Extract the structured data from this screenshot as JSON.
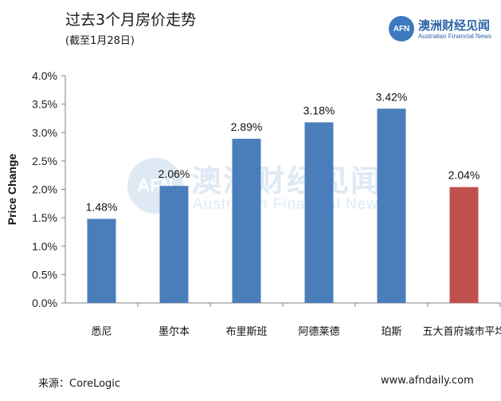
{
  "header": {
    "title": "过去3个月房价走势",
    "subtitle": "(截至1月28日)"
  },
  "logo": {
    "mark": "AFN",
    "name_cn": "澳洲财经见闻",
    "name_en": "Australian Financial News"
  },
  "watermark": {
    "mark": "AFN",
    "name_cn": "澳洲财经见闻",
    "name_en": "Australian Financial News"
  },
  "footer": {
    "source": "来源：CoreLogic",
    "website": "www.afndaily.com"
  },
  "colors": {
    "bar_default": "#4a7ebb",
    "bar_highlight": "#c0504d",
    "axis": "#808080"
  },
  "chart_data": {
    "type": "bar",
    "title": "",
    "xlabel": "",
    "ylabel": "Price Change",
    "ylim": [
      0,
      4.0
    ],
    "y_ticks": [
      "0.0%",
      "0.5%",
      "1.0%",
      "1.5%",
      "2.0%",
      "2.5%",
      "3.0%",
      "3.5%",
      "4.0%"
    ],
    "categories": [
      "悉尼",
      "墨尔本",
      "布里斯班",
      "阿德莱德",
      "珀斯",
      "五大首府城市平均"
    ],
    "values": [
      1.48,
      2.06,
      2.89,
      3.18,
      3.42,
      2.04
    ],
    "data_labels": [
      "1.48%",
      "2.06%",
      "2.89%",
      "3.18%",
      "3.42%",
      "2.04%"
    ],
    "highlight_category": "五大首府城市平均",
    "grid": false,
    "legend": "none"
  }
}
